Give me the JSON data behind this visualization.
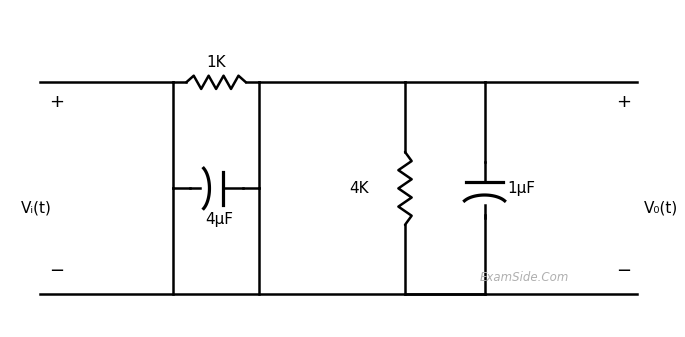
{
  "bg_color": "#ffffff",
  "line_color": "#000000",
  "label_color": "#000000",
  "watermark_color": "#b0b0b0",
  "vi_label": "Vᵢ(t)",
  "vo_label": "V₀(t)",
  "r1_label": "1K",
  "c1_label": "4μF",
  "r2_label": "4K",
  "c2_label": "1μF",
  "watermark": "ExamSide.Com",
  "figsize": [
    6.85,
    3.37
  ],
  "dpi": 100
}
